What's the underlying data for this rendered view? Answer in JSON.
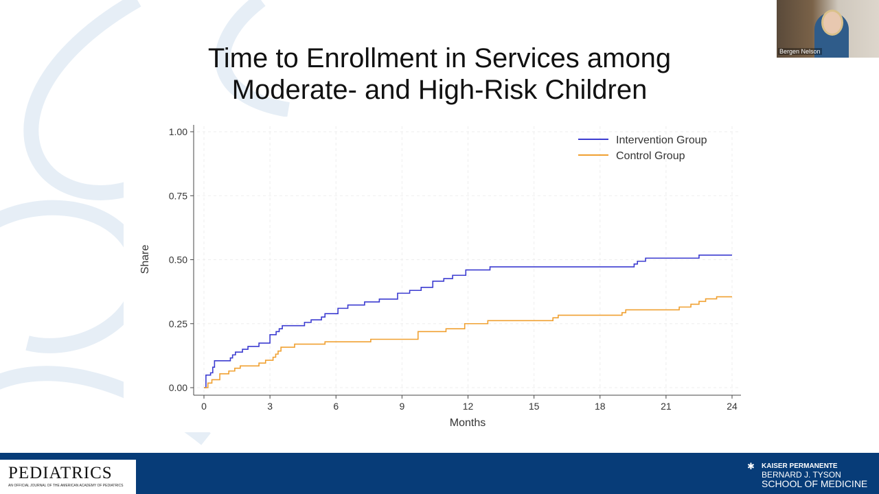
{
  "slide": {
    "title_line1": "Time to Enrollment in Services among",
    "title_line2": "Moderate- and High-Risk Children"
  },
  "video": {
    "participant_name": "Bergen Nelson"
  },
  "footer": {
    "left_logo": "PEDIATRICS",
    "left_logo_sub": "AN OFFICIAL JOURNAL OF THE AMERICAN ACADEMY OF PEDIATRICS",
    "right_logo_line1": "KAISER PERMANENTE",
    "right_logo_line2": "BERNARD J. TYSON",
    "right_logo_line3": "SCHOOL OF MEDICINE",
    "bar_color": "#073c78"
  },
  "chart_data": {
    "type": "line",
    "step": true,
    "xlabel": "Months",
    "ylabel": "Share",
    "xlim": [
      0,
      24
    ],
    "ylim": [
      0,
      1
    ],
    "xticks": [
      "0",
      "3",
      "6",
      "9",
      "12",
      "15",
      "18",
      "21",
      "24"
    ],
    "yticks": [
      "0.00",
      "0.25",
      "0.50",
      "0.75",
      "1.00"
    ],
    "grid": true,
    "legend_position": "top-right",
    "series": [
      {
        "name": "Intervention Group",
        "color": "#3b3bd0",
        "x": [
          0,
          0.09,
          0.3,
          0.4,
          0.48,
          1.2,
          1.3,
          1.43,
          1.75,
          2.0,
          2.5,
          3.0,
          3.28,
          3.42,
          3.56,
          4.57,
          4.87,
          5.34,
          5.5,
          6.09,
          6.54,
          7.3,
          7.97,
          8.8,
          9.35,
          9.87,
          10.4,
          10.9,
          11.3,
          11.9,
          13.0,
          19.55,
          19.7,
          20.07,
          22.5,
          24
        ],
        "y": [
          0,
          0.049,
          0.058,
          0.08,
          0.105,
          0.116,
          0.128,
          0.139,
          0.15,
          0.161,
          0.174,
          0.207,
          0.219,
          0.23,
          0.242,
          0.255,
          0.265,
          0.276,
          0.289,
          0.31,
          0.323,
          0.335,
          0.346,
          0.369,
          0.38,
          0.392,
          0.416,
          0.426,
          0.439,
          0.46,
          0.472,
          0.483,
          0.494,
          0.506,
          0.518,
          0.518
        ]
      },
      {
        "name": "Control Group",
        "color": "#f0a030",
        "x": [
          0,
          0.18,
          0.36,
          0.72,
          1.13,
          1.4,
          1.65,
          2.5,
          2.8,
          3.14,
          3.26,
          3.37,
          3.5,
          4.12,
          5.5,
          7.58,
          9.73,
          11.0,
          11.85,
          12.9,
          15.86,
          16.1,
          19.0,
          19.17,
          21.6,
          22.13,
          22.5,
          22.8,
          23.3,
          24
        ],
        "y": [
          0,
          0.018,
          0.031,
          0.054,
          0.065,
          0.076,
          0.085,
          0.096,
          0.107,
          0.119,
          0.131,
          0.143,
          0.158,
          0.17,
          0.179,
          0.189,
          0.219,
          0.23,
          0.25,
          0.262,
          0.273,
          0.283,
          0.293,
          0.304,
          0.315,
          0.326,
          0.337,
          0.347,
          0.355,
          0.355
        ]
      }
    ]
  }
}
